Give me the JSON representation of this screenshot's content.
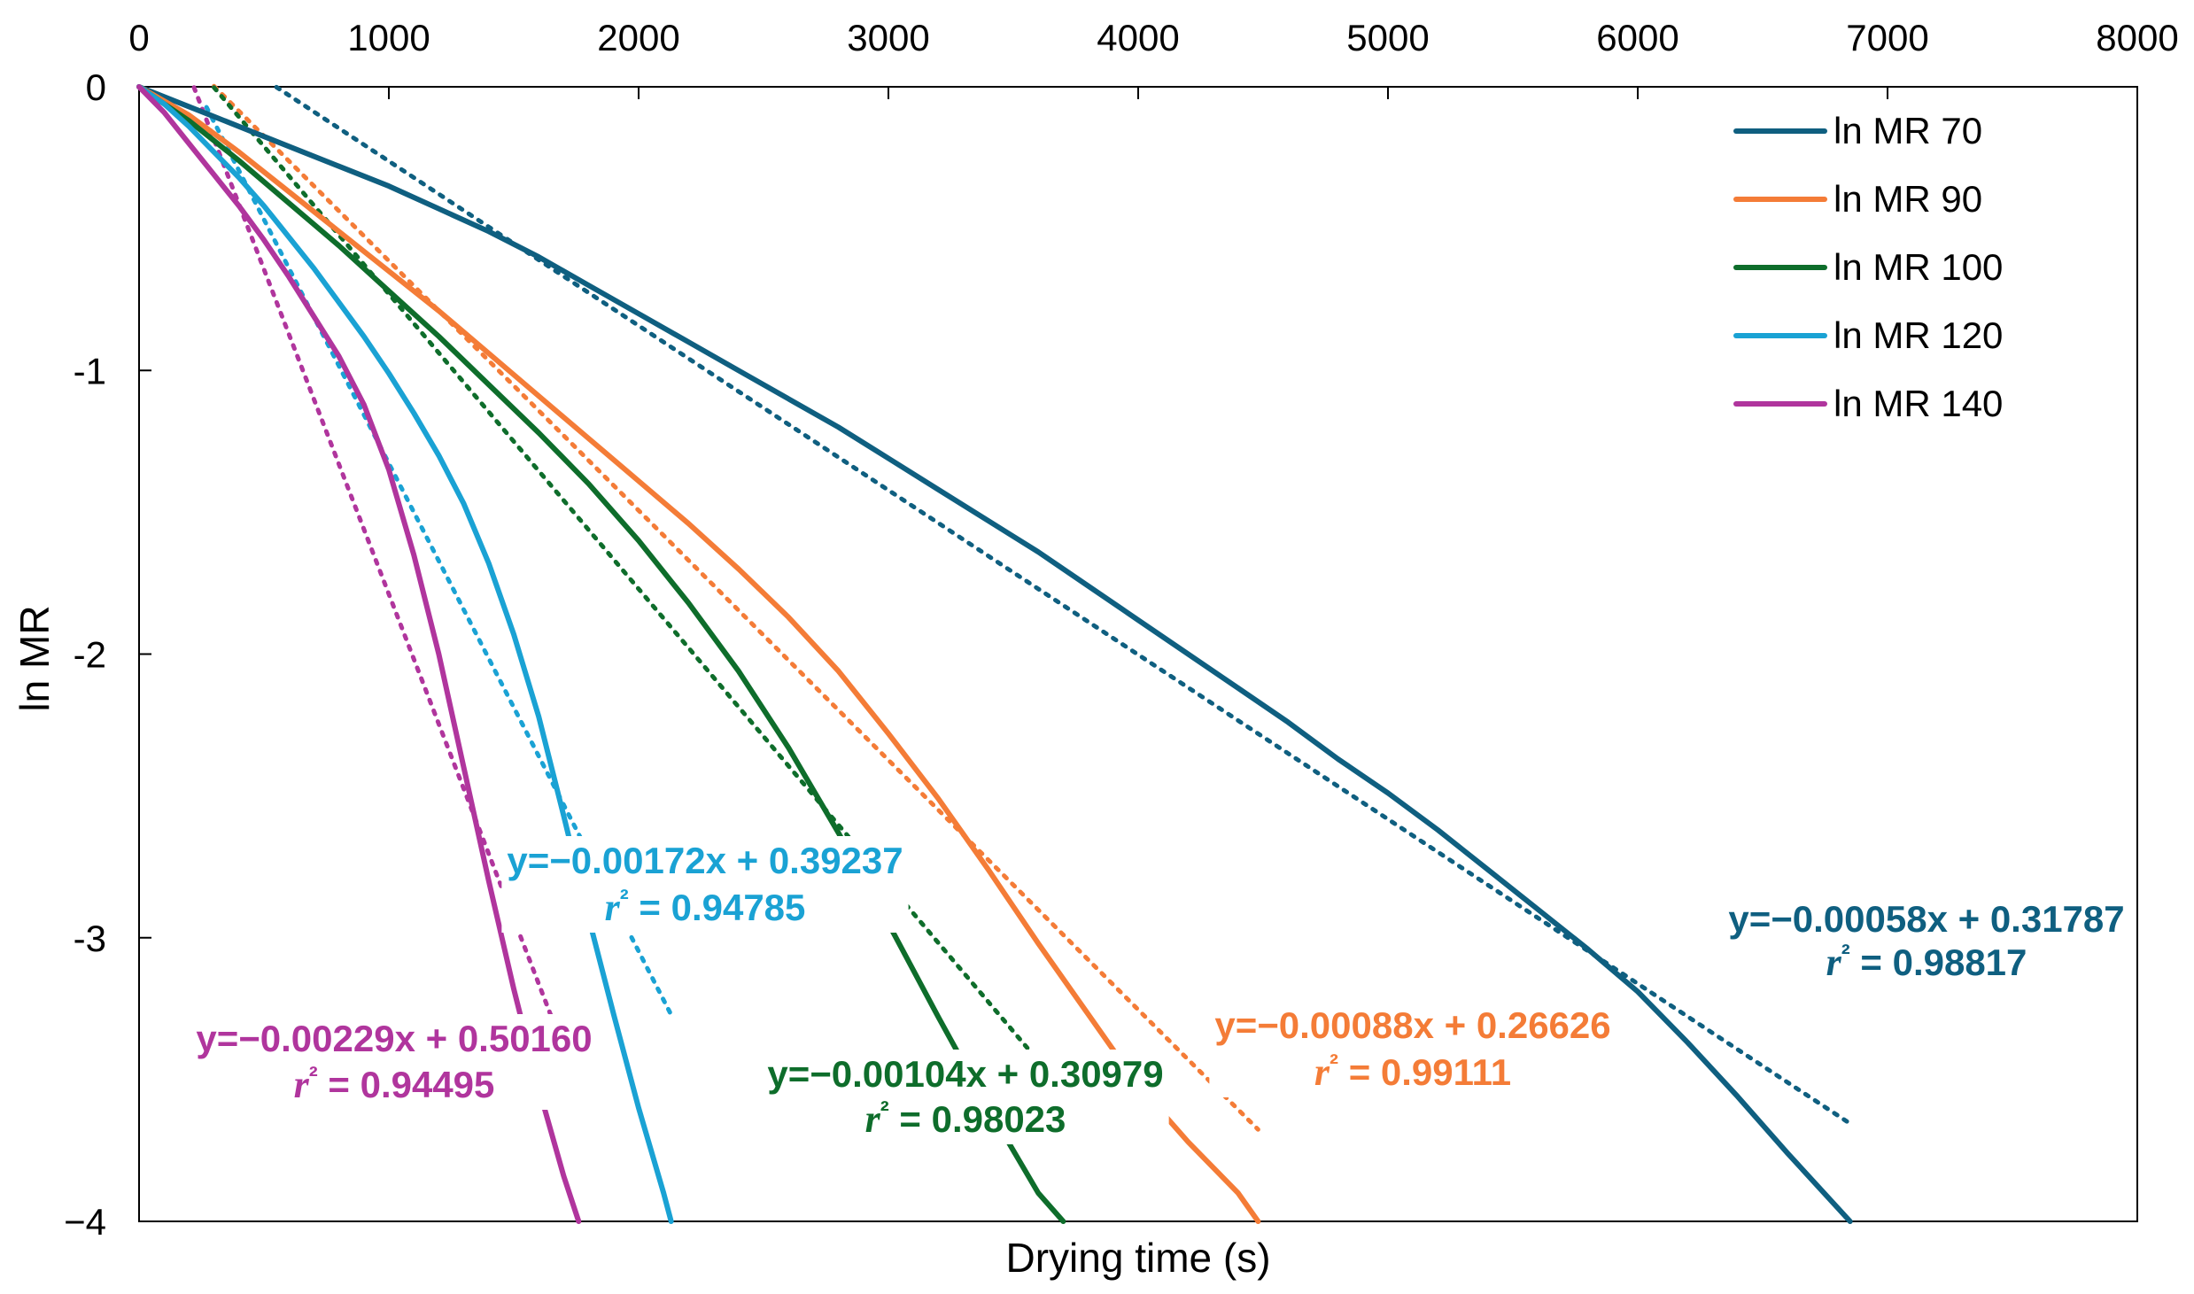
{
  "chart_data": {
    "type": "line",
    "title": "",
    "xlabel": "Drying time (s)",
    "ylabel": "ln MR",
    "xlim": [
      0,
      8000
    ],
    "ylim": [
      -4,
      0
    ],
    "x_ticks": [
      "0",
      "1000",
      "2000",
      "3000",
      "4000",
      "5000",
      "6000",
      "7000",
      "8000"
    ],
    "y_ticks": [
      "0",
      "-1",
      "-2",
      "-3",
      "−4"
    ],
    "x_axis_position": "top",
    "grid": false,
    "legend_position": "top-right",
    "series": [
      {
        "name": "ln MR 70",
        "color": "#0f5f80",
        "x": [
          0,
          200,
          400,
          600,
          800,
          1000,
          1200,
          1400,
          1600,
          1800,
          2000,
          2200,
          2400,
          2600,
          2800,
          3000,
          3200,
          3400,
          3600,
          3800,
          4000,
          4200,
          4400,
          4600,
          4800,
          5000,
          5200,
          5400,
          5600,
          5800,
          6000,
          6200,
          6400,
          6600,
          6850
        ],
        "y": [
          0,
          -0.07,
          -0.14,
          -0.21,
          -0.28,
          -0.35,
          -0.43,
          -0.51,
          -0.6,
          -0.7,
          -0.8,
          -0.9,
          -1.0,
          -1.1,
          -1.2,
          -1.31,
          -1.42,
          -1.53,
          -1.64,
          -1.76,
          -1.88,
          -2.0,
          -2.12,
          -2.24,
          -2.37,
          -2.49,
          -2.62,
          -2.76,
          -2.9,
          -3.04,
          -3.19,
          -3.37,
          -3.56,
          -3.76,
          -4.0
        ],
        "trendline": {
          "slope": -0.00058,
          "intercept": 0.31787,
          "r2": 0.98817,
          "x_from": 550,
          "x_to": 6850
        },
        "equation_label": "y=−0.00058x + 0.31787",
        "r2_label": "r² = 0.98817"
      },
      {
        "name": "ln MR 90",
        "color": "#f47c37",
        "x": [
          0,
          200,
          400,
          600,
          800,
          1000,
          1200,
          1400,
          1600,
          1800,
          2000,
          2200,
          2400,
          2600,
          2800,
          3000,
          3200,
          3400,
          3600,
          3800,
          4000,
          4200,
          4400,
          4480
        ],
        "y": [
          0,
          -0.1,
          -0.23,
          -0.37,
          -0.51,
          -0.65,
          -0.79,
          -0.94,
          -1.09,
          -1.24,
          -1.39,
          -1.54,
          -1.7,
          -1.87,
          -2.06,
          -2.28,
          -2.51,
          -2.76,
          -3.02,
          -3.27,
          -3.52,
          -3.72,
          -3.9,
          -4.0
        ],
        "trendline": {
          "slope": -0.00088,
          "intercept": 0.26626,
          "r2": 0.99111,
          "x_from": 300,
          "x_to": 4480
        },
        "equation_label": "y=−0.00088x + 0.26626",
        "r2_label": "r² = 0.99111"
      },
      {
        "name": "ln MR 100",
        "color": "#0e6d2b",
        "x": [
          0,
          200,
          400,
          600,
          800,
          1000,
          1200,
          1400,
          1600,
          1800,
          2000,
          2200,
          2400,
          2600,
          2800,
          3000,
          3200,
          3400,
          3600,
          3700
        ],
        "y": [
          0,
          -0.12,
          -0.26,
          -0.41,
          -0.56,
          -0.72,
          -0.88,
          -1.05,
          -1.22,
          -1.4,
          -1.6,
          -1.82,
          -2.06,
          -2.33,
          -2.63,
          -2.95,
          -3.28,
          -3.6,
          -3.9,
          -4.0
        ],
        "trendline": {
          "slope": -0.00104,
          "intercept": 0.30979,
          "r2": 0.98023,
          "x_from": 300,
          "x_to": 3700
        },
        "equation_label": "y=−0.00104x + 0.30979",
        "r2_label": "r² = 0.98023"
      },
      {
        "name": "ln MR 120",
        "color": "#1aa2d4",
        "x": [
          0,
          100,
          200,
          300,
          400,
          500,
          600,
          700,
          800,
          900,
          1000,
          1100,
          1200,
          1300,
          1400,
          1500,
          1600,
          1700,
          1800,
          1900,
          2000,
          2100,
          2130
        ],
        "y": [
          0,
          -0.06,
          -0.14,
          -0.23,
          -0.32,
          -0.42,
          -0.53,
          -0.64,
          -0.76,
          -0.88,
          -1.01,
          -1.15,
          -1.3,
          -1.47,
          -1.68,
          -1.93,
          -2.22,
          -2.57,
          -2.93,
          -3.27,
          -3.6,
          -3.9,
          -4.0
        ],
        "trendline": {
          "slope": -0.00172,
          "intercept": 0.39237,
          "r2": 0.94785,
          "x_from": 270,
          "x_to": 2130
        },
        "equation_label": "y=−0.00172x + 0.39237",
        "r2_label": "r² = 0.94785"
      },
      {
        "name": "ln MR 140",
        "color": "#b0359d",
        "x": [
          0,
          100,
          200,
          300,
          400,
          500,
          600,
          700,
          800,
          900,
          1000,
          1100,
          1200,
          1300,
          1400,
          1500,
          1600,
          1700,
          1760
        ],
        "y": [
          0,
          -0.09,
          -0.2,
          -0.31,
          -0.42,
          -0.54,
          -0.67,
          -0.81,
          -0.95,
          -1.12,
          -1.35,
          -1.65,
          -2.0,
          -2.4,
          -2.8,
          -3.18,
          -3.53,
          -3.84,
          -4.0
        ],
        "trendline": {
          "slope": -0.00229,
          "intercept": 0.5016,
          "r2": 0.94495,
          "x_from": 220,
          "x_to": 1750
        },
        "equation_label": "y=−0.00229x + 0.50160",
        "r2_label": "r² = 0.94495"
      }
    ]
  }
}
